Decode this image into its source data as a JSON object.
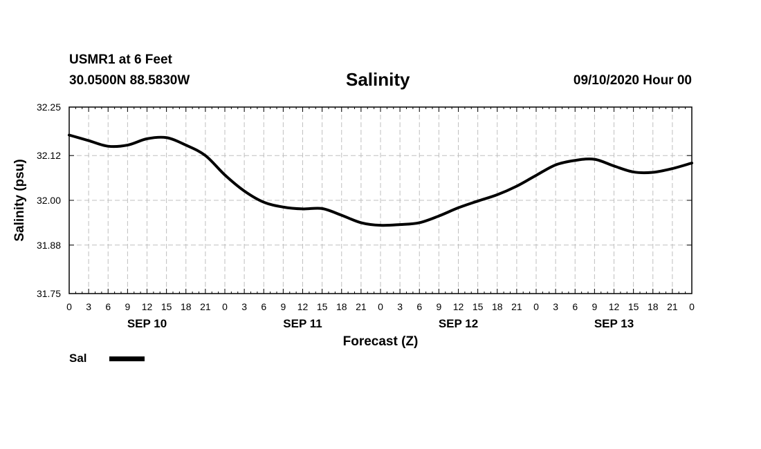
{
  "header": {
    "station": "USMR1 at 6 Feet",
    "coords": "30.0500N 88.5830W",
    "issued": "09/10/2020 Hour 00"
  },
  "colors": {
    "line": "#000000",
    "grid": "#bfbfbf",
    "axis": "#000000"
  },
  "chart_data": {
    "type": "line",
    "title": "Salinity",
    "xlabel": "Forecast (Z)",
    "ylabel": "Salinity (psu)",
    "ylim": [
      31.75,
      32.25
    ],
    "xlim": [
      0,
      96
    ],
    "y_ticks": [
      31.75,
      31.88,
      32.0,
      32.12,
      32.25
    ],
    "y_tick_labels": [
      "31.75",
      "31.88",
      "32.00",
      "32.12",
      "32.25"
    ],
    "x_tick_hours": [
      0,
      3,
      6,
      9,
      12,
      15,
      18,
      21,
      24,
      27,
      30,
      33,
      36,
      39,
      42,
      45,
      48,
      51,
      54,
      57,
      60,
      63,
      66,
      69,
      72,
      75,
      78,
      81,
      84,
      87,
      90,
      93,
      96
    ],
    "x_tick_labels": [
      "0",
      "3",
      "6",
      "9",
      "12",
      "15",
      "18",
      "21",
      "0",
      "3",
      "6",
      "9",
      "12",
      "15",
      "18",
      "21",
      "0",
      "3",
      "6",
      "9",
      "12",
      "15",
      "18",
      "21",
      "0",
      "3",
      "6",
      "9",
      "12",
      "15",
      "18",
      "21",
      "0"
    ],
    "x_minor_step_hours": 1,
    "day_labels": [
      {
        "hour": 12,
        "text": "SEP 10"
      },
      {
        "hour": 36,
        "text": "SEP 11"
      },
      {
        "hour": 60,
        "text": "SEP 12"
      },
      {
        "hour": 84,
        "text": "SEP 13"
      }
    ],
    "grid": true,
    "legend_position": "bottom-left",
    "series": [
      {
        "name": "Sal",
        "x": [
          0,
          3,
          6,
          9,
          12,
          15,
          18,
          21,
          24,
          27,
          30,
          33,
          36,
          39,
          42,
          45,
          48,
          51,
          54,
          57,
          60,
          63,
          66,
          69,
          72,
          75,
          78,
          81,
          84,
          87,
          90,
          93,
          96
        ],
        "values": [
          32.175,
          32.16,
          32.145,
          32.148,
          32.165,
          32.168,
          32.148,
          32.12,
          32.068,
          32.025,
          31.995,
          31.982,
          31.977,
          31.978,
          31.96,
          31.94,
          31.933,
          31.935,
          31.94,
          31.958,
          31.98,
          31.998,
          32.015,
          32.038,
          32.067,
          32.095,
          32.107,
          32.11,
          32.092,
          32.076,
          32.075,
          32.085,
          32.1
        ]
      }
    ]
  }
}
